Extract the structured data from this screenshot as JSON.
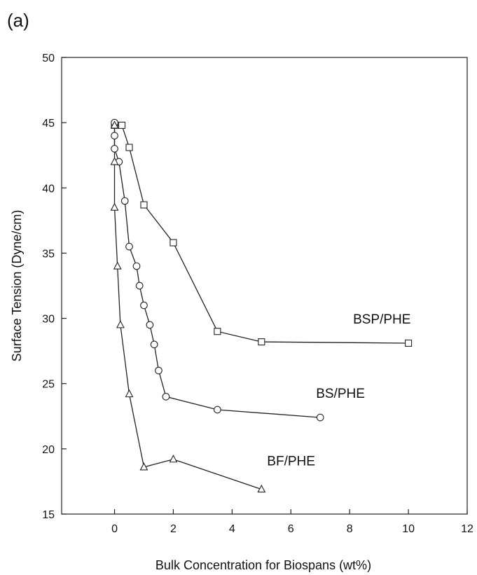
{
  "panel_label": "(a)",
  "chart_data": {
    "type": "line",
    "title": "",
    "xlabel": "Bulk Concentration for Biospans (wt%)",
    "ylabel": "Surface Tension (Dyne/cm)",
    "xlim": [
      -1.8,
      12
    ],
    "ylim": [
      15,
      50
    ],
    "xticks": [
      0,
      2,
      4,
      6,
      8,
      10,
      12
    ],
    "yticks": [
      15,
      20,
      25,
      30,
      35,
      40,
      45,
      50
    ],
    "grid": false,
    "series": [
      {
        "name": "BSP/PHE",
        "marker": "square",
        "x": [
          0.0,
          0.25,
          0.5,
          1.0,
          2.0,
          3.5,
          5.0,
          10.0
        ],
        "y": [
          44.8,
          44.8,
          43.1,
          38.7,
          35.8,
          29.0,
          28.2,
          28.1
        ]
      },
      {
        "name": "BS/PHE",
        "marker": "circle",
        "x": [
          0.0,
          0.0,
          0.0,
          0.15,
          0.35,
          0.5,
          0.75,
          0.85,
          1.0,
          1.2,
          1.35,
          1.5,
          1.75,
          3.5,
          7.0
        ],
        "y": [
          45.0,
          44.0,
          43.0,
          42.0,
          39.0,
          35.5,
          34.0,
          32.5,
          31.0,
          29.5,
          28.0,
          26.0,
          24.0,
          23.0,
          22.4
        ]
      },
      {
        "name": "BF/PHE",
        "marker": "triangle",
        "x": [
          0.0,
          0.0,
          0.0,
          0.1,
          0.2,
          0.5,
          1.0,
          2.0,
          5.0
        ],
        "y": [
          44.8,
          42.0,
          38.5,
          34.0,
          29.5,
          24.2,
          18.6,
          19.2,
          16.9
        ]
      }
    ]
  }
}
